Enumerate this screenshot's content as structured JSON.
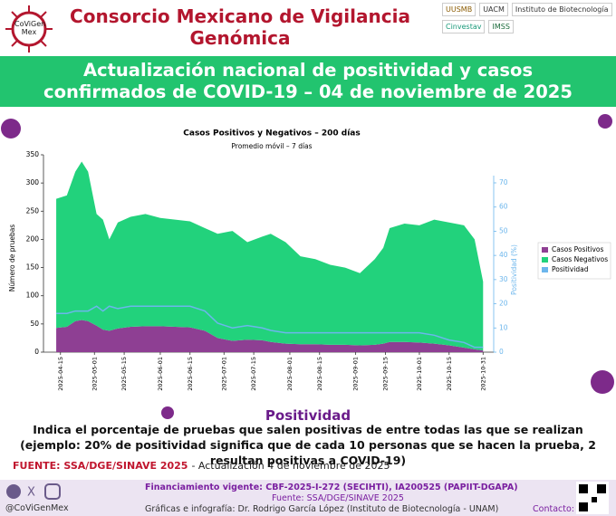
{
  "header": {
    "logo_text": "CoViGen Mex",
    "title": "Consorcio Mexicano de Vigilancia Genómica",
    "partner_logos": [
      "UUSMB",
      "UACM",
      "Instituto de Biotecnología",
      "Cinvestav",
      "IMSS"
    ]
  },
  "banner": {
    "title": "Actualización nacional de positividad y casos confirmados de COVID-19 – 04 de noviembre de 2025"
  },
  "chart_data": {
    "type": "stacked_area",
    "title": "Casos Positivos y Negativos – 200 días",
    "subtitle": "Promedio móvil – 7 días",
    "y_label": "Número de pruebas",
    "y2_label": "Positividad (%)",
    "x": [
      "2025-04-13",
      "2025-04-18",
      "2025-04-22",
      "2025-04-25",
      "2025-04-28",
      "2025-05-02",
      "2025-05-05",
      "2025-05-08",
      "2025-05-12",
      "2025-05-18",
      "2025-05-25",
      "2025-06-01",
      "2025-06-08",
      "2025-06-15",
      "2025-06-22",
      "2025-06-28",
      "2025-07-05",
      "2025-07-12",
      "2025-07-19",
      "2025-07-23",
      "2025-07-30",
      "2025-08-06",
      "2025-08-13",
      "2025-08-20",
      "2025-08-27",
      "2025-09-03",
      "2025-09-10",
      "2025-09-14",
      "2025-09-17",
      "2025-09-24",
      "2025-10-01",
      "2025-10-08",
      "2025-10-15",
      "2025-10-22",
      "2025-10-27",
      "2025-10-31"
    ],
    "series": [
      {
        "name": "Casos Positivos",
        "color": "#8e3f93",
        "values": [
          43,
          45,
          55,
          57,
          55,
          47,
          40,
          38,
          42,
          45,
          46,
          46,
          45,
          44,
          38,
          25,
          20,
          22,
          21,
          18,
          15,
          14,
          14,
          13,
          13,
          12,
          13,
          15,
          18,
          18,
          17,
          15,
          12,
          8,
          5,
          3
        ]
      },
      {
        "name": "Casos Negativos",
        "color": "#22d27c",
        "values": [
          229,
          233,
          265,
          281,
          265,
          198,
          195,
          162,
          188,
          195,
          199,
          192,
          190,
          188,
          182,
          185,
          195,
          173,
          184,
          192,
          180,
          156,
          151,
          142,
          137,
          128,
          152,
          170,
          202,
          210,
          208,
          220,
          218,
          217,
          195,
          122
        ]
      },
      {
        "name": "Positividad",
        "color": "#6cb6ec",
        "axis": "y2",
        "values": [
          16,
          16,
          17,
          17,
          17,
          19,
          17,
          19,
          18,
          19,
          19,
          19,
          19,
          19,
          17,
          12,
          10,
          11,
          10,
          9,
          8,
          8,
          8,
          8,
          8,
          8,
          8,
          8,
          8,
          8,
          8,
          7,
          5,
          4,
          2,
          2
        ]
      }
    ],
    "xlim": [
      "2025-04-07",
      "2025-11-05"
    ],
    "xticks": [
      "2025-04-15",
      "2025-05-01",
      "2025-05-15",
      "2025-06-01",
      "2025-06-15",
      "2025-07-01",
      "2025-07-15",
      "2025-08-01",
      "2025-08-15",
      "2025-09-01",
      "2025-09-15",
      "2025-10-01",
      "2025-10-15",
      "2025-10-31"
    ],
    "ylim": [
      0,
      350
    ],
    "yticks": [
      0,
      50,
      100,
      150,
      200,
      250,
      300,
      350
    ],
    "y2lim": [
      0,
      70
    ],
    "y2ticks": [
      0,
      10,
      20,
      30,
      40,
      50,
      60,
      70
    ],
    "legend": "right"
  },
  "explanation": {
    "heading": "Positividad",
    "text": "Indica el porcentaje de pruebas que salen positivas de entre todas las que se realizan (ejemplo: 20% de positividad significa que de cada 10 personas que se hacen la prueba, 2 resultan positivas a COVID-19)"
  },
  "source": {
    "label": "FUENTE: SSA/DGE/SINAVE 2025",
    "update": "- Actualización 4 de noviembre de 2025"
  },
  "footer": {
    "handle": "@CoViGenMex",
    "funding": "Financiamiento vigente: CBF-2025-I-272 (SECIHTI), IA200525 (PAPIIT-DGAPA)",
    "source": "Fuente: SSA/DGE/SINAVE 2025",
    "credits": "Gráficas e infografía: Dr. Rodrigo García López (Instituto de Biotecnología - UNAM)",
    "contact": "Contacto:"
  }
}
